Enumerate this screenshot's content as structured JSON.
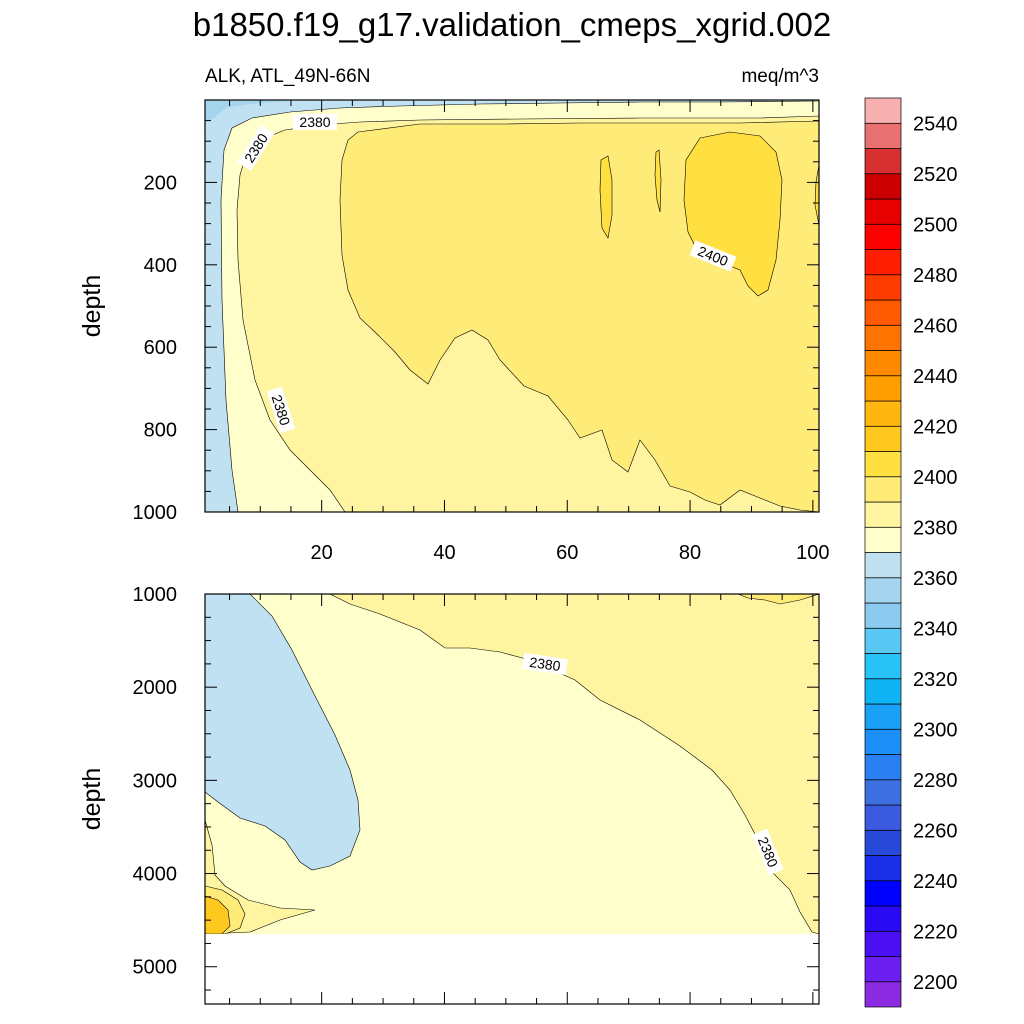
{
  "chart_data": {
    "type": "contour",
    "title": "b1850.f19_g17.validation_cmeps_xgrid.002",
    "variable_label": "ALK, ATL_49N-66N",
    "units_label": "meq/m^3",
    "x_range": [
      1,
      101
    ],
    "x_ticks": [
      20,
      40,
      60,
      80,
      100
    ],
    "colorbar": {
      "levels": [
        2200,
        2210,
        2220,
        2230,
        2240,
        2250,
        2260,
        2270,
        2280,
        2290,
        2300,
        2310,
        2320,
        2330,
        2340,
        2350,
        2360,
        2370,
        2380,
        2390,
        2400,
        2410,
        2420,
        2430,
        2440,
        2450,
        2460,
        2470,
        2480,
        2490,
        2500,
        2510,
        2520,
        2530,
        2540,
        2550
      ],
      "labels": [
        "2200",
        "2220",
        "2240",
        "2260",
        "2280",
        "2300",
        "2320",
        "2340",
        "2360",
        "2380",
        "2400",
        "2420",
        "2440",
        "2460",
        "2480",
        "2500",
        "2520",
        "2540"
      ],
      "colors": [
        "#8a2be2",
        "#6a1ff0",
        "#4b10f2",
        "#2a0af5",
        "#0000ff",
        "#1a2fe8",
        "#2848d8",
        "#3a5ae0",
        "#3d6fe0",
        "#2a80f0",
        "#1b8ff5",
        "#1aa0f5",
        "#10b4f5",
        "#28c4f8",
        "#5ac8f5",
        "#8ccaf0",
        "#a5d5ee",
        "#bfe1f2",
        "#ffffcc",
        "#fff4a0",
        "#ffeb78",
        "#ffe040",
        "#ffc81e",
        "#ffb60f",
        "#ffa000",
        "#ff8a00",
        "#ff7400",
        "#ff5a00",
        "#ff3c00",
        "#ff1e00",
        "#ff0000",
        "#e60000",
        "#cc0000",
        "#d83030",
        "#e87070",
        "#f8b0b0"
      ]
    },
    "panels": [
      {
        "name": "upper",
        "ylabel": "depth",
        "y_range": [
          0,
          1000
        ],
        "y_ticks": [
          200,
          400,
          600,
          800,
          1000
        ],
        "contour_labels": [
          "2380",
          "2380",
          "2380",
          "2400"
        ]
      },
      {
        "name": "lower",
        "ylabel": "depth",
        "y_range": [
          1000,
          5400
        ],
        "y_ticks": [
          1000,
          2000,
          3000,
          4000,
          5000
        ],
        "contour_labels": [
          "2380",
          "2380"
        ]
      }
    ]
  }
}
